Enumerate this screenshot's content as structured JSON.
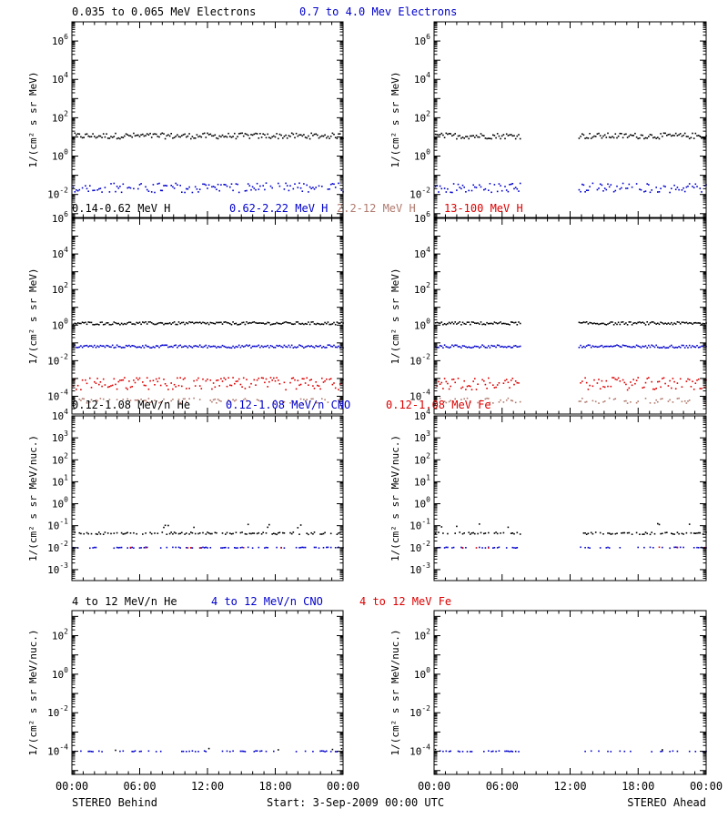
{
  "footer": {
    "left": "STEREO Behind",
    "center": "Start:  3-Sep-2009 00:00 UTC",
    "right": "STEREO Ahead"
  },
  "colors": {
    "black": "#000000",
    "blue": "#0000cc",
    "brown": "#b07a6e",
    "red": "#dd0000"
  },
  "chart_data": [
    {
      "type": "scatter",
      "id": "electrons",
      "title_items": [
        {
          "text": "0.035 to 0.065 MeV Electrons",
          "color": "#000000"
        },
        {
          "text": "0.7 to 4.0 Mev Electrons",
          "color": "#0000cc"
        }
      ],
      "ylabel": "1/(cm² s sr MeV)",
      "yscale": "log",
      "ylim_exp": [
        -3.2,
        7
      ],
      "yticks": [
        {
          "b": "10",
          "e": "6",
          "v": 6
        },
        {
          "b": "10",
          "e": "4",
          "v": 4
        },
        {
          "b": "10",
          "e": "2",
          "v": 2
        },
        {
          "b": "10",
          "e": "0",
          "v": 0
        },
        {
          "b": "10",
          "e": "-2",
          "v": -2
        }
      ],
      "xticks": [
        "00:00",
        "06:00",
        "12:00",
        "18:00",
        "00:00"
      ],
      "series": [
        {
          "color": "#000000",
          "level_exp": 1.05,
          "spread": 0.15,
          "density": 1.0
        },
        {
          "color": "#0000cc",
          "level_exp": -1.65,
          "spread": 0.25,
          "density": 0.75
        }
      ]
    },
    {
      "type": "scatter",
      "id": "protons",
      "title_items": [
        {
          "text": "0.14-0.62 MeV H",
          "color": "#000000"
        },
        {
          "text": "0.62-2.22 MeV H",
          "color": "#0000cc"
        },
        {
          "text": "2.2-12 MeV H",
          "color": "#b07a6e"
        },
        {
          "text": "13-100 MeV H",
          "color": "#dd0000"
        }
      ],
      "ylabel": "1/(cm² s sr MeV)",
      "yscale": "log",
      "ylim_exp": [
        -5,
        6
      ],
      "yticks": [
        {
          "b": "10",
          "e": "6",
          "v": 6
        },
        {
          "b": "10",
          "e": "4",
          "v": 4
        },
        {
          "b": "10",
          "e": "2",
          "v": 2
        },
        {
          "b": "10",
          "e": "0",
          "v": 0
        },
        {
          "b": "10",
          "e": "-2",
          "v": -2
        },
        {
          "b": "10",
          "e": "-4",
          "v": -4
        }
      ],
      "xticks": [
        "00:00",
        "06:00",
        "12:00",
        "18:00",
        "00:00"
      ],
      "series": [
        {
          "color": "#000000",
          "level_exp": 0.1,
          "spread": 0.08,
          "density": 1.0
        },
        {
          "color": "#0000cc",
          "level_exp": -1.2,
          "spread": 0.08,
          "density": 1.0
        },
        {
          "color": "#b07a6e",
          "level_exp": -4.25,
          "spread": 0.15,
          "density": 0.45
        },
        {
          "color": "#dd0000",
          "level_exp": -3.3,
          "spread": 0.35,
          "density": 0.85
        }
      ]
    },
    {
      "type": "scatter",
      "id": "heavy-low",
      "title_items": [
        {
          "text": "0.12-1.08 MeV/n He",
          "color": "#000000"
        },
        {
          "text": "0.12-1.08 MeV/n CNO",
          "color": "#0000cc"
        },
        {
          "text": "0.12-1.08 MeV Fe",
          "color": "#dd0000"
        }
      ],
      "ylabel": "1/(cm² s sr MeV/nuc.)",
      "yscale": "log",
      "ylim_exp": [
        -3.5,
        4
      ],
      "yticks": [
        {
          "b": "10",
          "e": "4",
          "v": 4
        },
        {
          "b": "10",
          "e": "3",
          "v": 3
        },
        {
          "b": "10",
          "e": "2",
          "v": 2
        },
        {
          "b": "10",
          "e": "1",
          "v": 1
        },
        {
          "b": "10",
          "e": "0",
          "v": 0
        },
        {
          "b": "10",
          "e": "-1",
          "v": -1
        },
        {
          "b": "10",
          "e": "-2",
          "v": -2
        },
        {
          "b": "10",
          "e": "-3",
          "v": -3
        }
      ],
      "xticks": [
        "00:00",
        "06:00",
        "12:00",
        "18:00",
        "00:00"
      ],
      "series": [
        {
          "color": "#000000",
          "level_exp": -1.35,
          "spread": 0.05,
          "density": 0.6,
          "extra_level": -1.0,
          "extra_density": 0.08
        },
        {
          "color": "#0000cc",
          "level_exp": -2.0,
          "spread": 0.02,
          "density": 0.35
        },
        {
          "color": "#dd0000",
          "level_exp": -2.0,
          "spread": 0.02,
          "density": 0.03
        }
      ]
    },
    {
      "type": "scatter",
      "id": "heavy-high",
      "title_items": [
        {
          "text": "4 to 12 MeV/n He",
          "color": "#000000"
        },
        {
          "text": "4 to 12 MeV/n CNO",
          "color": "#0000cc"
        },
        {
          "text": "4 to 12 MeV Fe",
          "color": "#dd0000"
        }
      ],
      "ylabel": "1/(cm² s sr MeV/nuc.)",
      "yscale": "log",
      "ylim_exp": [
        -5.2,
        3.3
      ],
      "yticks": [
        {
          "b": "10",
          "e": "2",
          "v": 2
        },
        {
          "b": "10",
          "e": "0",
          "v": 0
        },
        {
          "b": "10",
          "e": "-2",
          "v": -2
        },
        {
          "b": "10",
          "e": "-4",
          "v": -4
        }
      ],
      "xticks": [
        "00:00",
        "06:00",
        "12:00",
        "18:00",
        "00:00"
      ],
      "series": [
        {
          "color": "#0000cc",
          "level_exp": -4.0,
          "spread": 0.02,
          "density": 0.3
        },
        {
          "color": "#000000",
          "level_exp": -3.9,
          "spread": 0.05,
          "density": 0.04
        }
      ]
    }
  ],
  "spacecraft": [
    {
      "name": "behind",
      "gaps": []
    },
    {
      "name": "ahead",
      "gaps": [
        [
          7.6,
          12.7
        ]
      ]
    }
  ]
}
